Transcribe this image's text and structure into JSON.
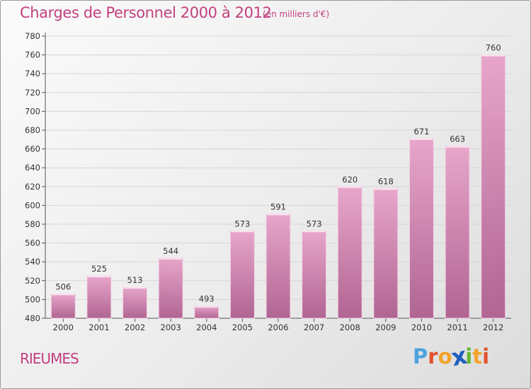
{
  "header": {
    "title": "Charges de Personnel 2000 à 2012",
    "subtitle": "(en milliers d'€)"
  },
  "footer": {
    "commune": "RIEUMES",
    "logo_text": "Proxiti",
    "logo_letters": [
      "P",
      "r",
      "o",
      "x",
      "i",
      "t",
      "i"
    ],
    "logo_colors": [
      "#4da3e0",
      "#e0532e",
      "#f3a32b",
      "#1e5fbf",
      "#65b82e",
      "#f3a32b",
      "#e0532e"
    ]
  },
  "colors": {
    "bar_top": "#e8a6cb",
    "bar_bottom": "#b06592",
    "accent": "#c2407f"
  },
  "chart_data": {
    "type": "bar",
    "title": "Charges de Personnel 2000 à 2012",
    "subtitle": "(en milliers d'€)",
    "categories": [
      "2000",
      "2001",
      "2002",
      "2003",
      "2004",
      "2005",
      "2006",
      "2007",
      "2008",
      "2009",
      "2010",
      "2011",
      "2012"
    ],
    "values": [
      506,
      525,
      513,
      544,
      493,
      573,
      591,
      573,
      620,
      618,
      671,
      663,
      760
    ],
    "value_labels": [
      "506",
      "525",
      "513",
      "544",
      "493",
      "573",
      "591",
      "573",
      "620",
      "618",
      "671",
      "663",
      "760"
    ],
    "ylim": [
      480,
      780
    ],
    "yticks": [
      "480",
      "500",
      "520",
      "540",
      "560",
      "580",
      "600",
      "620",
      "640",
      "660",
      "680",
      "700",
      "720",
      "740",
      "760",
      "780"
    ],
    "grid": true,
    "legend": "none"
  }
}
